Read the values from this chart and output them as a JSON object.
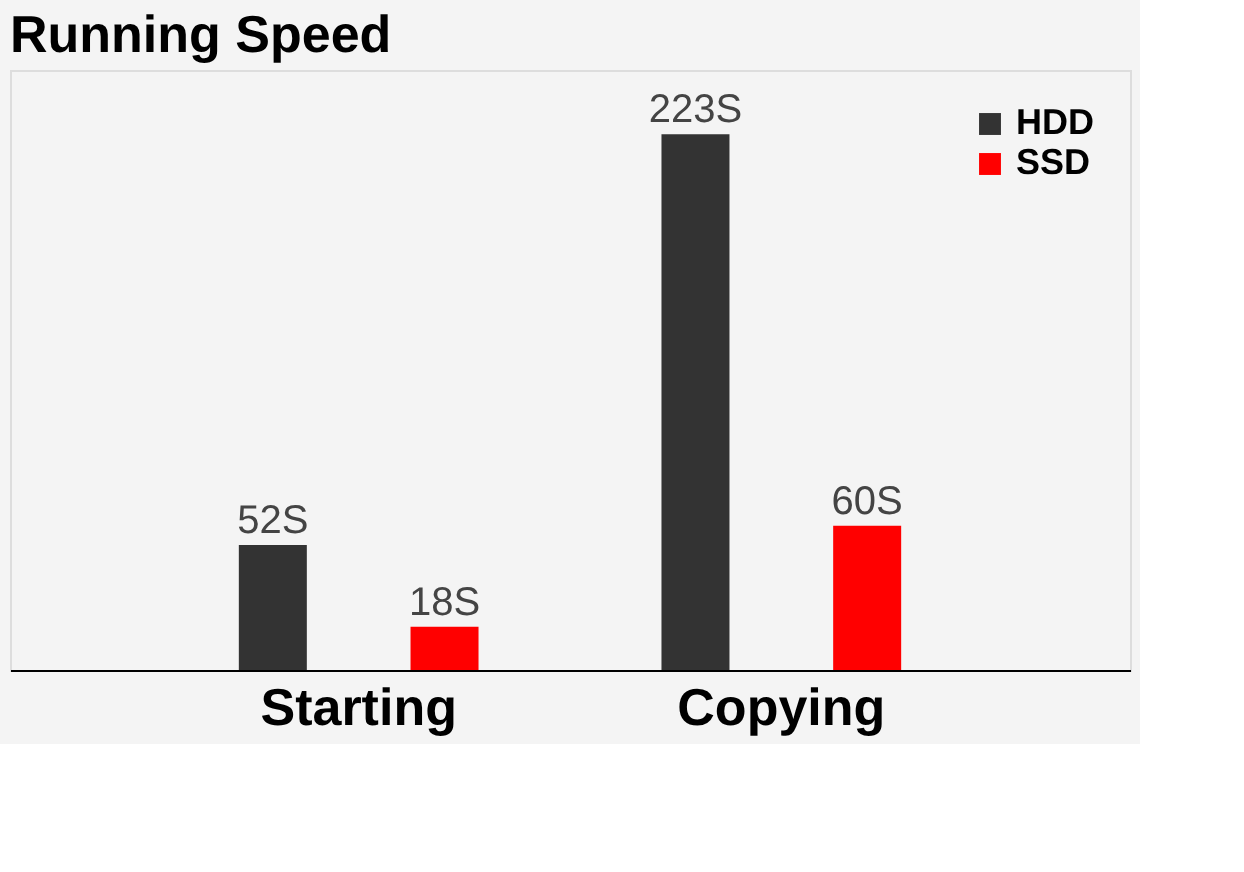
{
  "chart_data": {
    "type": "bar",
    "title": "Running Speed",
    "categories": [
      "Starting",
      "Copying"
    ],
    "series": [
      {
        "name": "HDD",
        "color": "#333333",
        "values": [
          52,
          223
        ],
        "value_labels": [
          "52S",
          "223S"
        ]
      },
      {
        "name": "SSD",
        "color": "#ff0000",
        "values": [
          18,
          60
        ],
        "value_labels": [
          "18S",
          "60S"
        ]
      }
    ],
    "legend": "top right",
    "grid": false
  }
}
